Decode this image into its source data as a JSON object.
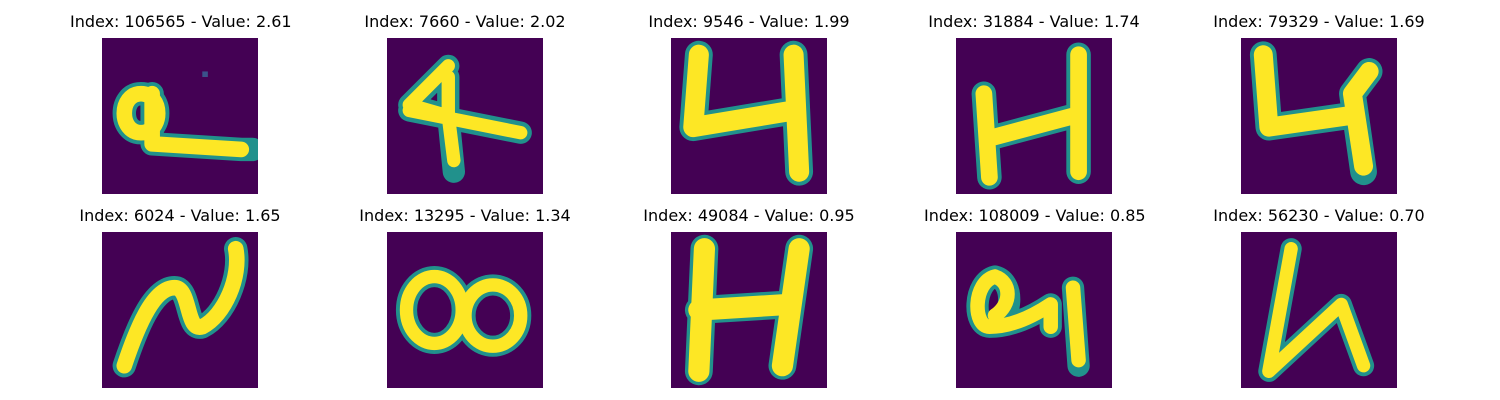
{
  "figure": {
    "colors": {
      "background": "#440154",
      "mid": "#21918c",
      "foreground": "#fde725"
    },
    "colormap": "viridis",
    "panels": [
      {
        "title": "Index: 106565 - Value: 2.61",
        "index": 106565,
        "value": 2.61,
        "glyph": "loop-with-tail"
      },
      {
        "title": "Index: 7660 - Value: 2.02",
        "index": 7660,
        "value": 2.02,
        "glyph": "four-cross"
      },
      {
        "title": "Index: 9546 - Value: 1.99",
        "index": 9546,
        "value": 1.99,
        "glyph": "four-open"
      },
      {
        "title": "Index: 31884 - Value: 1.74",
        "index": 31884,
        "value": 1.74,
        "glyph": "four-h"
      },
      {
        "title": "Index: 79329 - Value: 1.69",
        "index": 79329,
        "value": 1.69,
        "glyph": "four-open"
      },
      {
        "title": "Index: 6024 - Value: 1.65",
        "index": 6024,
        "value": 1.65,
        "glyph": "squiggle"
      },
      {
        "title": "Index: 13295 - Value: 1.34",
        "index": 13295,
        "value": 1.34,
        "glyph": "double-loop"
      },
      {
        "title": "Index: 49084 - Value: 0.95",
        "index": 49084,
        "value": 0.95,
        "glyph": "four-h"
      },
      {
        "title": "Index: 108009 - Value: 0.85",
        "index": 108009,
        "value": 0.85,
        "glyph": "loop-four"
      },
      {
        "title": "Index: 56230 - Value: 0.70",
        "index": 56230,
        "value": 0.7,
        "glyph": "four-slanted"
      }
    ]
  }
}
